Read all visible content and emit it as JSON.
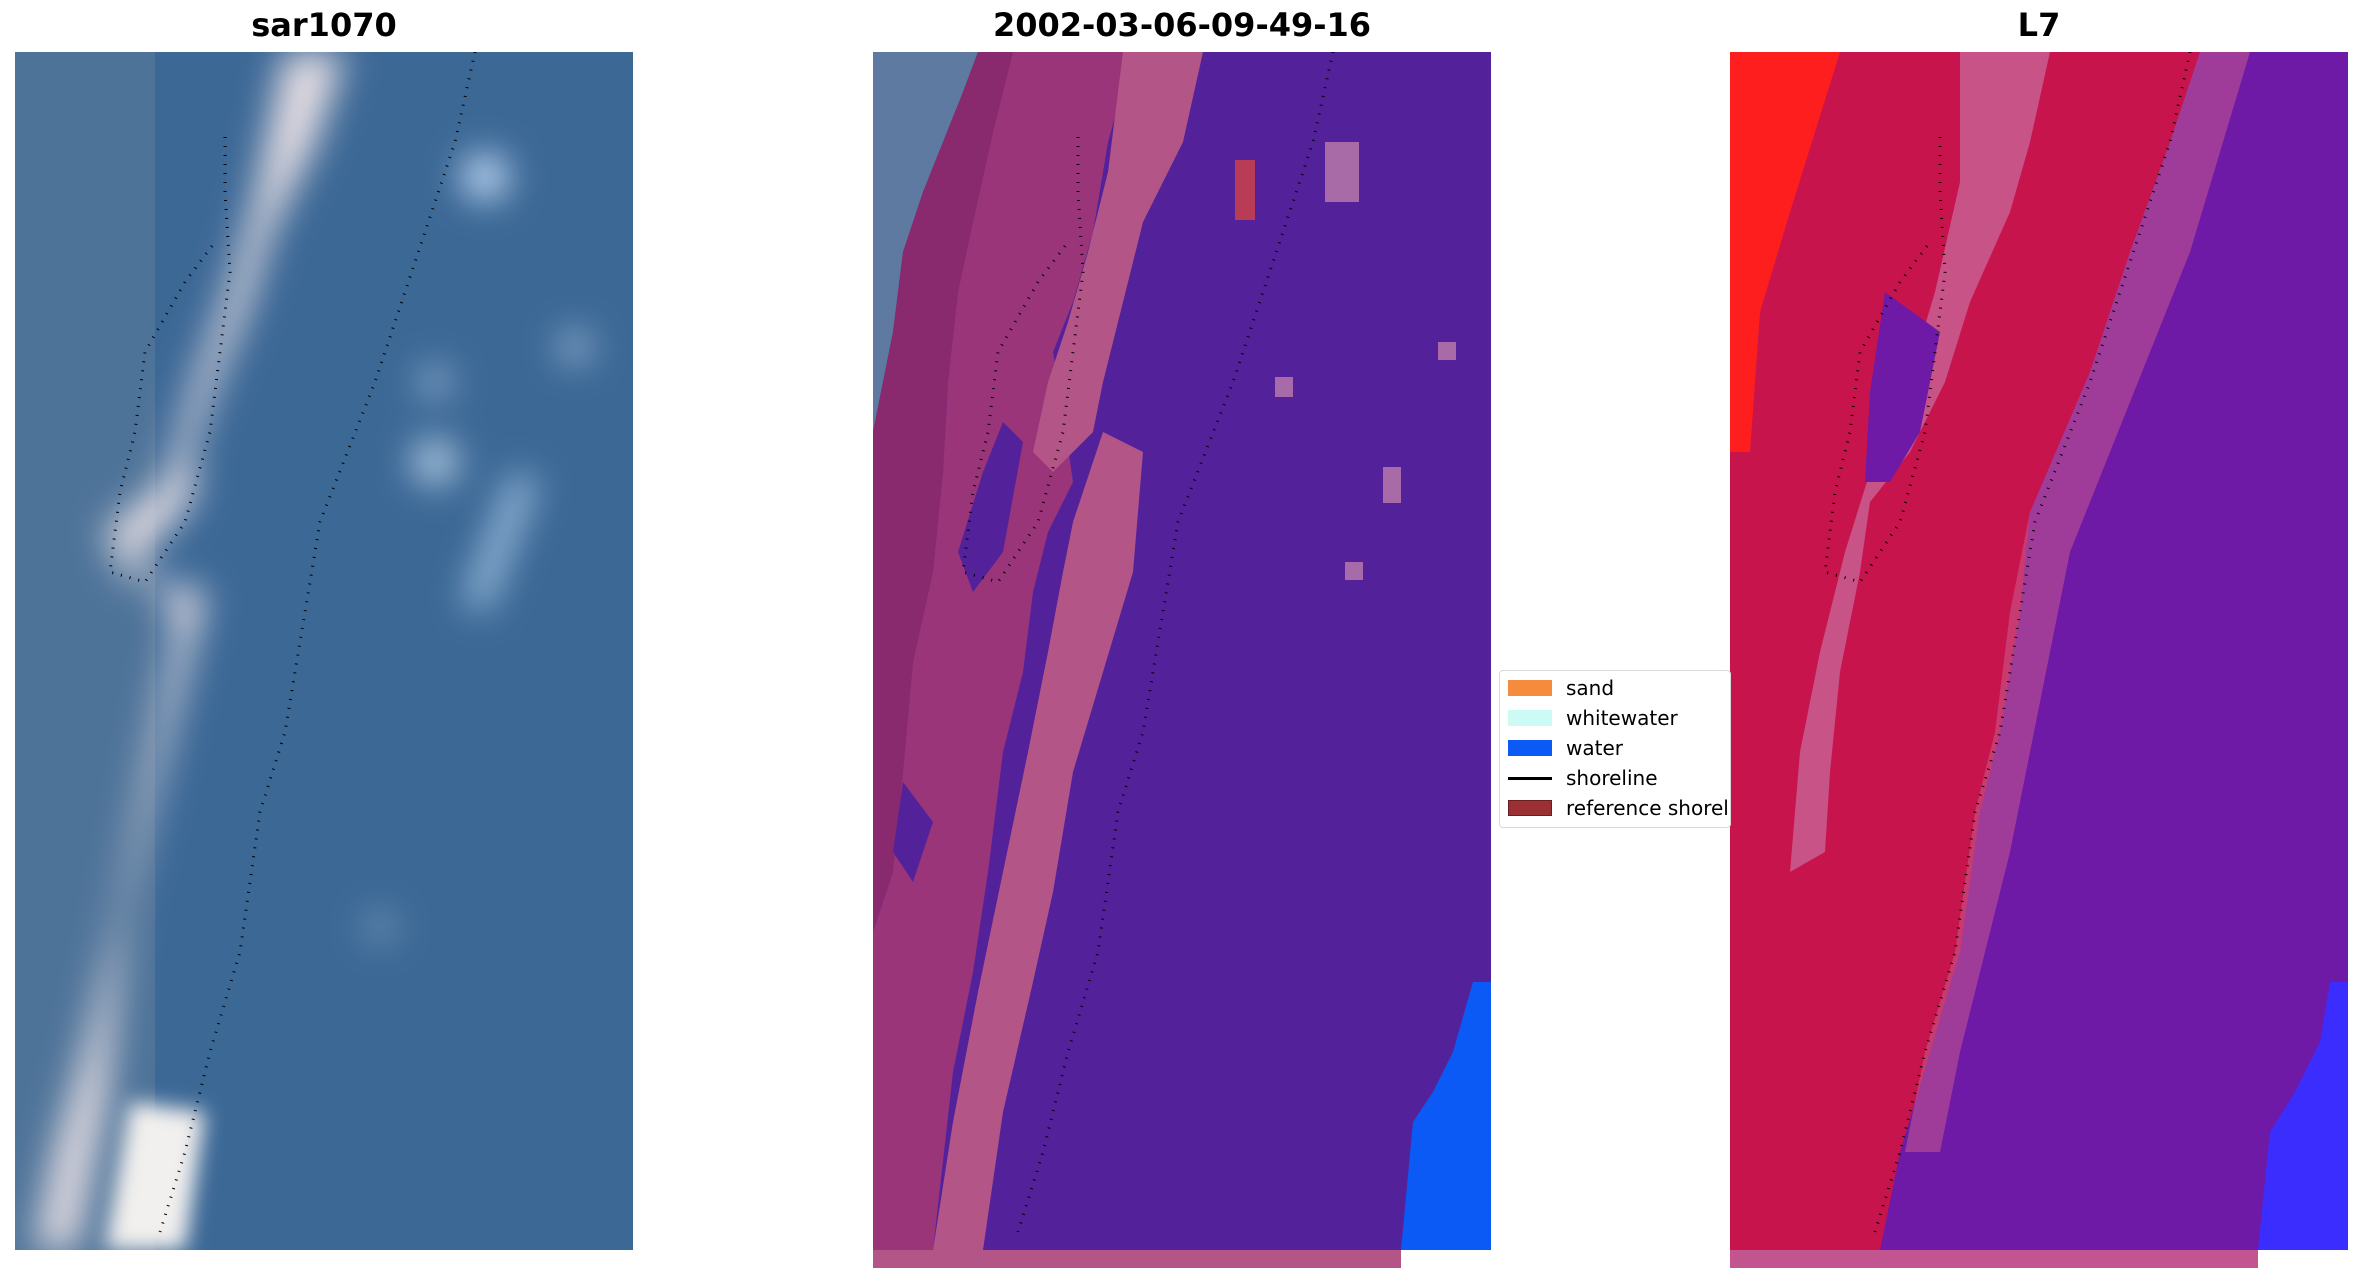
{
  "panels": [
    {
      "id": "rgb",
      "title": "sar1070"
    },
    {
      "id": "classified",
      "title": "2002-03-06-09-49-16"
    },
    {
      "id": "index",
      "title": "L7"
    }
  ],
  "legend": {
    "items": [
      {
        "label": "sand",
        "color": "#f58b3c",
        "kind": "patch"
      },
      {
        "label": "whitewater",
        "color": "#ccfaf4",
        "kind": "patch"
      },
      {
        "label": "water",
        "color": "#0c5af5",
        "kind": "patch"
      },
      {
        "label": "shoreline",
        "color": "#000000",
        "kind": "line"
      },
      {
        "label": "reference shoreline",
        "color": "#9a3033",
        "kind": "patch"
      }
    ]
  },
  "colors": {
    "rgb_water": "#3c6896",
    "rgb_sand": "#e8e0e4",
    "class_purple": "#53229a",
    "class_pink": "#b35587",
    "class_water": "#0c5af5",
    "index_red": "#c8144c",
    "index_purple": "#6e1aa6",
    "index_bright_red": "#ff1e1e"
  }
}
